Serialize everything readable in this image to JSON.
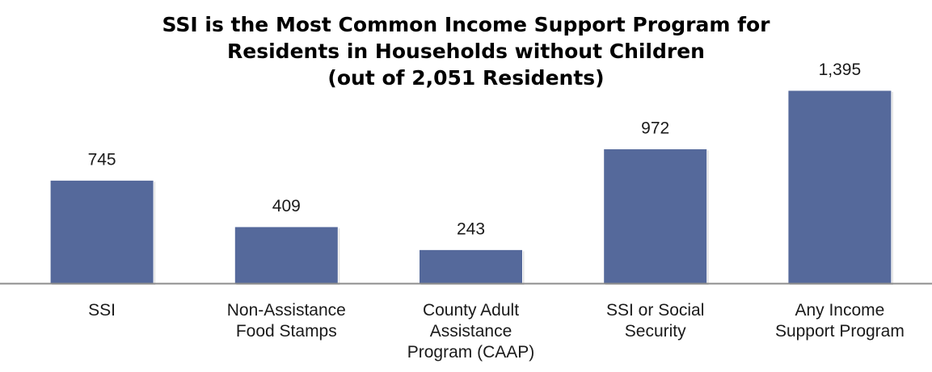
{
  "chart_data": {
    "type": "bar",
    "title": [
      "SSI is the Most Common Income Support Program for",
      "Residents in Households without Children",
      "(out of 2,051 Residents)"
    ],
    "categories": [
      [
        "SSI"
      ],
      [
        "Non-Assistance",
        "Food Stamps"
      ],
      [
        "County Adult",
        "Assistance",
        "Program (CAAP)"
      ],
      [
        "SSI or Social",
        "Security"
      ],
      [
        "Any Income",
        "Support Program"
      ]
    ],
    "values": [
      745,
      409,
      243,
      972,
      1395
    ],
    "value_labels": [
      "745",
      "409",
      "243",
      "972",
      "1,395"
    ],
    "ylim": [
      0,
      1395
    ],
    "grid": false,
    "colors": {
      "bar": "#55699b",
      "axis": "#8c8c8c",
      "text": "#1a1a1a"
    }
  }
}
